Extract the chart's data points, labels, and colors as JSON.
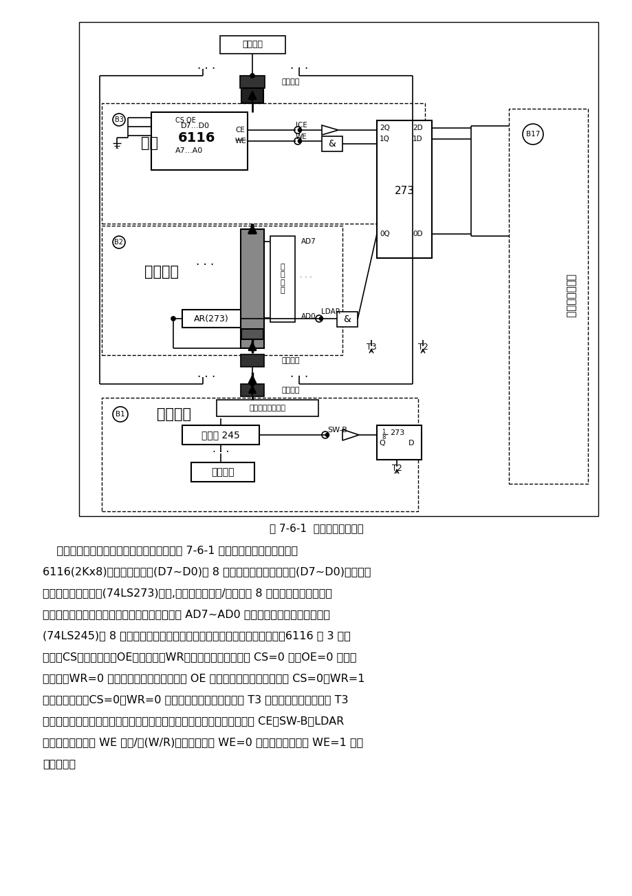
{
  "bg_color": "#ffffff",
  "fig_width": 9.2,
  "fig_height": 13.02,
  "caption": "图 7-6-1  存储器实验原理图",
  "para_lines": [
    "    实验所用的半导体静态存储器电路原理如图 7-6-1 所示，该静态存储器由一片",
    "6116(2Kx8)构成，其数据线(D7~D0)以 8 芯扁平线方式和数据总线(D7~D0)相连接，",
    "地址线由地址锁存器(74LS273)给出,该锁存器的输入/输出通过 8 芯扁平线分别连至数据",
    "总线接口和存储器地址接口。地址显示单元显示 AD7~AD0 的内容。数据开关经一三态门",
    "(74LS245)以 8 芯扁平线方式连至数据总线接口，分时给出地址和数据。6116 有 3 根控",
    "制线：CS（片选线）、OE（读线）、WR（写线）。当片选有效 CS=0 时，OE=0 时进行",
    "读操作，WR=0 时进行写操作。本实验中将 OE 引脚接地，在此情况下，当 CS=0、WR=1",
    "时进行读操作，CS=0、WR=0 时进行写操作，其写时间与 T3 脉冲宽度一致。实验时 T3",
    "脉冲由【单步】命令键产生，其它电平控制信号由二进制开关模拟，其中 CE、SW-B、LDAR",
    "为高电平有效，而 WE 为读/写(W/R)控制信号，当 WE=0 时进行读操作，当 WE=1 时进",
    "行写操作。"
  ]
}
